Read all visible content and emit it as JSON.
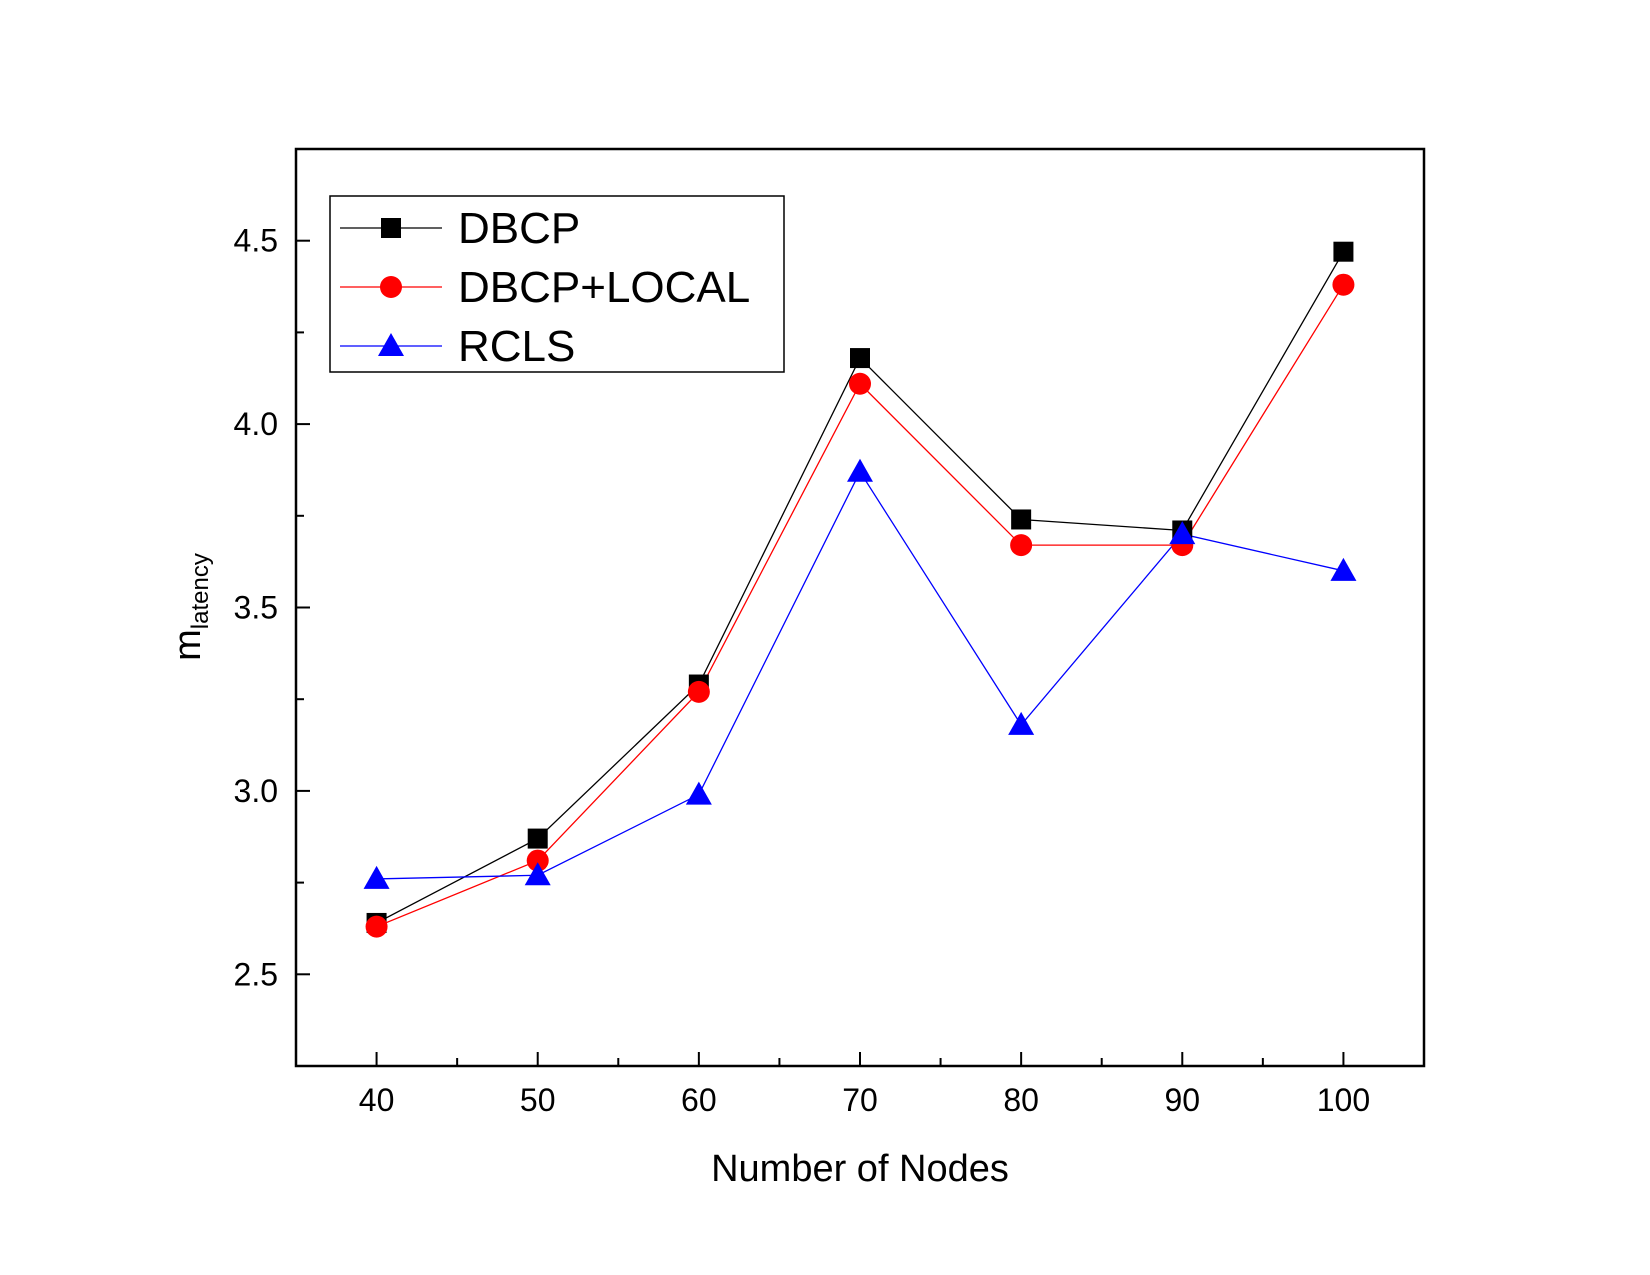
{
  "chart_data": {
    "type": "line",
    "title": "",
    "xlabel": "Number of Nodes",
    "ylabel_main": "m",
    "ylabel_sub": "latency",
    "x": [
      40,
      50,
      60,
      70,
      80,
      90,
      100
    ],
    "xlim": [
      35,
      105
    ],
    "ylim": [
      2.25,
      4.75
    ],
    "x_major_ticks": [
      40,
      50,
      60,
      70,
      80,
      90,
      100
    ],
    "x_tick_labels": [
      "40",
      "50",
      "60",
      "70",
      "80",
      "90",
      "100"
    ],
    "y_major_ticks": [
      2.5,
      3.0,
      3.5,
      4.0,
      4.5
    ],
    "y_tick_labels": [
      "2.5",
      "3.0",
      "3.5",
      "4.0",
      "4.5"
    ],
    "grid": false,
    "legend_position": "top-left",
    "series": [
      {
        "name": "DBCP",
        "color": "#000000",
        "marker": "square",
        "values": [
          2.64,
          2.87,
          3.29,
          4.18,
          3.74,
          3.71,
          4.47
        ]
      },
      {
        "name": "DBCP+LOCAL",
        "color": "#ff0000",
        "marker": "circle",
        "values": [
          2.63,
          2.81,
          3.27,
          4.11,
          3.67,
          3.67,
          4.38
        ]
      },
      {
        "name": "RCLS",
        "color": "#0000ff",
        "marker": "triangle",
        "values": [
          2.76,
          2.77,
          2.99,
          3.87,
          3.18,
          3.7,
          3.6
        ]
      }
    ]
  }
}
